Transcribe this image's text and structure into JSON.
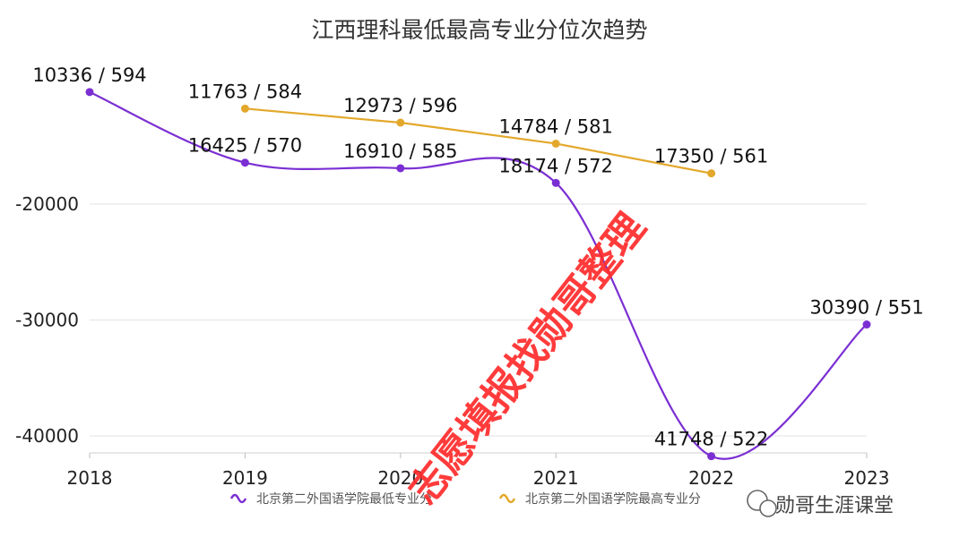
{
  "chart_data": {
    "type": "line",
    "title": "江西理科最低最高专业分位次趋势",
    "xlabel": "",
    "ylabel": "",
    "x": [
      "2018",
      "2019",
      "2020",
      "2021",
      "2022",
      "2023"
    ],
    "yticks": [
      -20000,
      -30000,
      -40000
    ],
    "ylim": [
      -42000,
      -9000
    ],
    "grid": true,
    "legend_position": "bottom",
    "series": [
      {
        "name": "北京第二外国语学院最低专业分",
        "color": "#7b2fd3",
        "smooth": true,
        "points": [
          {
            "x": "2018",
            "rank": 10336,
            "score": 594
          },
          {
            "x": "2019",
            "rank": 16425,
            "score": 570
          },
          {
            "x": "2020",
            "rank": 16910,
            "score": 585
          },
          {
            "x": "2021",
            "rank": 18174,
            "score": 572
          },
          {
            "x": "2022",
            "rank": 41748,
            "score": 522
          },
          {
            "x": "2023",
            "rank": 30390,
            "score": 551
          }
        ]
      },
      {
        "name": "北京第二外国语学院最高专业分",
        "color": "#e3a82b",
        "smooth": false,
        "points": [
          {
            "x": "2019",
            "rank": 11763,
            "score": 584
          },
          {
            "x": "2020",
            "rank": 12973,
            "score": 596
          },
          {
            "x": "2021",
            "rank": 14784,
            "score": 581
          },
          {
            "x": "2022",
            "rank": 17350,
            "score": 561
          }
        ]
      }
    ]
  },
  "watermark": {
    "text": "志愿填报找勋哥整理",
    "color": "#ff2b2b"
  },
  "brand": {
    "text": "勋哥生涯课堂",
    "icon": "wechat-icon"
  }
}
